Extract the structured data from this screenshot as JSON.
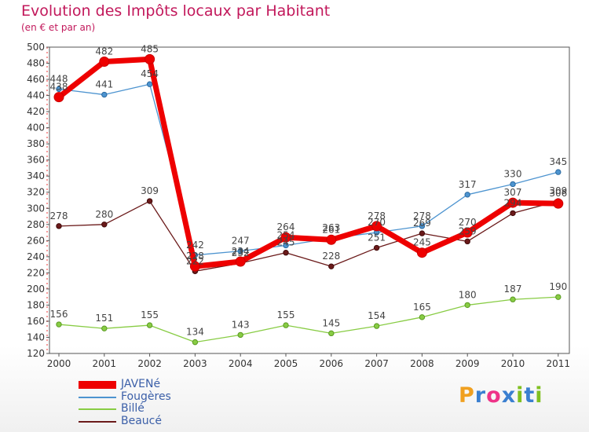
{
  "header": {
    "title": "Evolution des Impôts locaux par Habitant",
    "subtitle": "(en € et par an)"
  },
  "logo": {
    "text": "Proxiti",
    "letters": [
      "P",
      "r",
      "o",
      "x",
      "i",
      "t",
      "i"
    ],
    "colors": [
      "#f0a020",
      "#3a7fd0",
      "#ee3388",
      "#3a7fd0",
      "#80c020",
      "#3a7fd0",
      "#80c020"
    ]
  },
  "chart_data": {
    "type": "line",
    "x": [
      "2000",
      "2001",
      "2002",
      "2003",
      "2004",
      "2005",
      "2006",
      "2007",
      "2008",
      "2009",
      "2010",
      "2011"
    ],
    "ylim": [
      120,
      500
    ],
    "yticks": [
      120,
      140,
      160,
      180,
      200,
      220,
      240,
      260,
      280,
      300,
      320,
      340,
      360,
      380,
      400,
      420,
      440,
      460,
      480,
      500
    ],
    "grid": false,
    "legend_position": "bottom-left",
    "series": [
      {
        "name": "JAVENé",
        "color": "#ee0000",
        "values": [
          438,
          482,
          485,
          228,
          234,
          264,
          261,
          278,
          245,
          270,
          307,
          306
        ],
        "labels": [
          "438",
          "482",
          "485",
          "228",
          "234",
          "264",
          "261",
          "278",
          "245",
          "270",
          "307",
          "306"
        ]
      },
      {
        "name": "Fougères",
        "color": "#4d94d0",
        "values": [
          448,
          441,
          454,
          242,
          247,
          254,
          263,
          270,
          278,
          317,
          330,
          345
        ],
        "labels": [
          "448",
          "441",
          "454",
          "242",
          "247",
          "254",
          "263",
          "270",
          "278",
          "317",
          "330",
          "345"
        ]
      },
      {
        "name": "Billé",
        "color": "#88cc44",
        "values": [
          156,
          151,
          155,
          134,
          143,
          155,
          145,
          154,
          165,
          180,
          187,
          190
        ],
        "labels": [
          "156",
          "151",
          "155",
          "134",
          "143",
          "155",
          "145",
          "154",
          "165",
          "180",
          "187",
          "190"
        ]
      },
      {
        "name": "Beaucé",
        "color": "#6b1a1a",
        "values": [
          278,
          280,
          309,
          222,
          232,
          245,
          228,
          251,
          269,
          259,
          294,
          309
        ],
        "labels": [
          "278",
          "280",
          "309",
          "222",
          "232",
          "245",
          "228",
          "251",
          "269",
          "259",
          "294",
          "309"
        ]
      }
    ]
  }
}
